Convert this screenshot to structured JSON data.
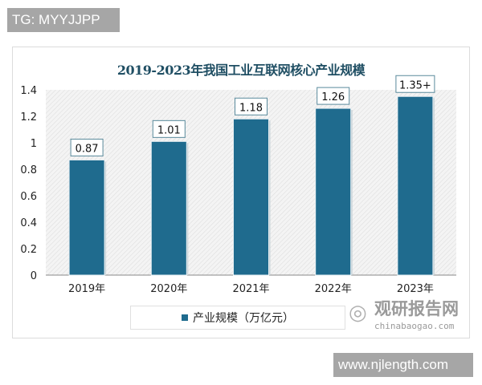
{
  "watermarks": {
    "top_tag": "TG: MYYJJPP",
    "bottom_tag": "www.njlength.com",
    "logo_cn": "观研报告网",
    "logo_en": "chinabaogao.com"
  },
  "chart_data": {
    "type": "bar",
    "title": "2019-2023年我国工业互联网核心产业规模",
    "categories": [
      "2019年",
      "2020年",
      "2021年",
      "2022年",
      "2023年"
    ],
    "series": [
      {
        "name": "产业规模（万亿元）",
        "values": [
          0.87,
          1.01,
          1.18,
          1.26,
          1.35
        ],
        "labels": [
          "0.87",
          "1.01",
          "1.18",
          "1.26",
          "1.35+"
        ]
      }
    ],
    "ylim": [
      0,
      1.4
    ],
    "yticks": [
      "0",
      "0.2",
      "0.4",
      "0.6",
      "0.8",
      "1",
      "1.2",
      "1.4"
    ],
    "xlabel": "",
    "ylabel": "",
    "grid": false,
    "legend": "bottom",
    "colors": {
      "bar": "#1f6b8e",
      "title": "#1f4e63"
    }
  }
}
